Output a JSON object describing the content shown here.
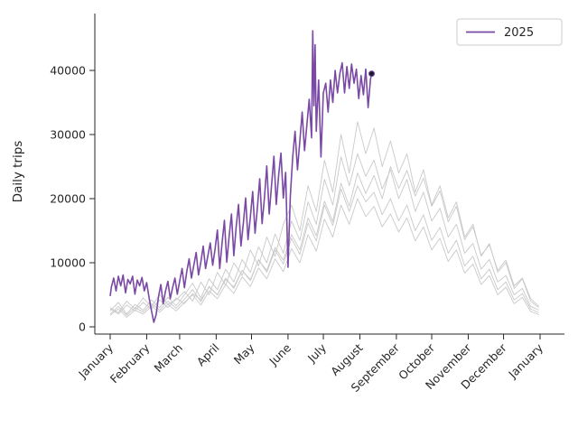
{
  "chart_data": {
    "type": "line",
    "title": "",
    "ylabel": "Daily trips",
    "xlabel": "",
    "grid": false,
    "x_tick_labels": [
      "January",
      "February",
      "March",
      "April",
      "May",
      "June",
      "July",
      "August",
      "September",
      "October",
      "November",
      "December",
      "January"
    ],
    "month_start_days": [
      0,
      31,
      59,
      90,
      120,
      151,
      181,
      212,
      243,
      273,
      304,
      334,
      365
    ],
    "y_ticks": [
      0,
      10000,
      20000,
      30000,
      40000
    ],
    "ylim": [
      0,
      48000
    ],
    "xlim_days": [
      0,
      365
    ],
    "legend": {
      "label": "2025",
      "position": "upper-right"
    },
    "colors": {
      "current_year": "#7a49a5",
      "previous_years": "#c9c9c9",
      "axis": "#262626",
      "end_marker_fill": "#1b1b2f",
      "legend_border": "#cccccc",
      "background": "#ffffff"
    },
    "current_year": {
      "name": "2025",
      "points": [
        [
          0,
          4800
        ],
        [
          1,
          6200
        ],
        [
          3,
          7600
        ],
        [
          5,
          5600
        ],
        [
          7,
          7900
        ],
        [
          9,
          6400
        ],
        [
          11,
          8100
        ],
        [
          13,
          5300
        ],
        [
          15,
          7400
        ],
        [
          17,
          6700
        ],
        [
          19,
          7900
        ],
        [
          21,
          5100
        ],
        [
          23,
          7300
        ],
        [
          25,
          6400
        ],
        [
          27,
          7700
        ],
        [
          29,
          5600
        ],
        [
          31,
          6900
        ],
        [
          33,
          4600
        ],
        [
          35,
          2600
        ],
        [
          37,
          700
        ],
        [
          39,
          1900
        ],
        [
          41,
          4700
        ],
        [
          43,
          6600
        ],
        [
          45,
          3600
        ],
        [
          47,
          5600
        ],
        [
          49,
          7100
        ],
        [
          51,
          4400
        ],
        [
          53,
          6100
        ],
        [
          55,
          7600
        ],
        [
          57,
          5100
        ],
        [
          59,
          7100
        ],
        [
          61,
          9100
        ],
        [
          63,
          6100
        ],
        [
          65,
          8600
        ],
        [
          67,
          10600
        ],
        [
          69,
          7600
        ],
        [
          71,
          9600
        ],
        [
          73,
          11600
        ],
        [
          75,
          8100
        ],
        [
          77,
          10100
        ],
        [
          79,
          12600
        ],
        [
          81,
          9100
        ],
        [
          83,
          11100
        ],
        [
          85,
          13100
        ],
        [
          87,
          9600
        ],
        [
          89,
          12100
        ],
        [
          91,
          15100
        ],
        [
          93,
          9100
        ],
        [
          95,
          13100
        ],
        [
          97,
          16600
        ],
        [
          99,
          10100
        ],
        [
          101,
          14100
        ],
        [
          103,
          17600
        ],
        [
          105,
          11100
        ],
        [
          107,
          15600
        ],
        [
          109,
          19100
        ],
        [
          111,
          12600
        ],
        [
          113,
          16100
        ],
        [
          115,
          20100
        ],
        [
          117,
          13600
        ],
        [
          119,
          17100
        ],
        [
          121,
          21100
        ],
        [
          123,
          14600
        ],
        [
          125,
          18600
        ],
        [
          127,
          23100
        ],
        [
          129,
          16100
        ],
        [
          131,
          20100
        ],
        [
          133,
          25100
        ],
        [
          135,
          17600
        ],
        [
          137,
          22100
        ],
        [
          139,
          26600
        ],
        [
          141,
          19100
        ],
        [
          143,
          23600
        ],
        [
          145,
          27100
        ],
        [
          147,
          20100
        ],
        [
          149,
          24100
        ],
        [
          151,
          9300
        ],
        [
          153,
          20500
        ],
        [
          155,
          26500
        ],
        [
          157,
          30500
        ],
        [
          159,
          24500
        ],
        [
          161,
          29000
        ],
        [
          163,
          33500
        ],
        [
          165,
          27500
        ],
        [
          167,
          31500
        ],
        [
          169,
          35500
        ],
        [
          171,
          29500
        ],
        [
          172,
          46200
        ],
        [
          173,
          34500
        ],
        [
          174,
          44000
        ],
        [
          175,
          30500
        ],
        [
          177,
          38500
        ],
        [
          179,
          26500
        ],
        [
          181,
          36500
        ],
        [
          183,
          38000
        ],
        [
          185,
          33500
        ],
        [
          187,
          38500
        ],
        [
          189,
          35000
        ],
        [
          191,
          40000
        ],
        [
          193,
          36500
        ],
        [
          195,
          39500
        ],
        [
          197,
          41200
        ],
        [
          199,
          36500
        ],
        [
          201,
          40600
        ],
        [
          203,
          37200
        ],
        [
          205,
          41000
        ],
        [
          207,
          38000
        ],
        [
          209,
          40200
        ],
        [
          211,
          35600
        ],
        [
          213,
          39200
        ],
        [
          215,
          36200
        ],
        [
          217,
          40200
        ],
        [
          219,
          34200
        ],
        [
          221,
          38600
        ],
        [
          222,
          39500
        ]
      ],
      "end_marker": [
        222,
        39500
      ]
    },
    "previous_years": [
      {
        "name": "previous-year-1",
        "step_days": 7,
        "values": [
          3000,
          2200,
          4000,
          2800,
          4500,
          3200,
          5000,
          3500,
          4200,
          5500,
          4000,
          7000,
          5000,
          8500,
          6500,
          10000,
          8000,
          12000,
          9500,
          14000,
          11000,
          16000,
          19000,
          15000,
          22000,
          18000,
          26000,
          21000,
          30000,
          24000,
          32000,
          27000,
          31000,
          25000,
          29000,
          24000,
          27000,
          21000,
          24500,
          19000,
          22000,
          17000,
          19500,
          14000,
          16000,
          11000,
          13000,
          8500,
          10000,
          6000,
          7500,
          4000,
          3000
        ]
      },
      {
        "name": "previous-year-2",
        "step_days": 7,
        "values": [
          2500,
          3800,
          2000,
          3500,
          2600,
          4200,
          3000,
          4600,
          3300,
          5000,
          6800,
          4500,
          7500,
          5800,
          9000,
          7000,
          10500,
          8500,
          12500,
          10000,
          14500,
          11500,
          16500,
          13500,
          19500,
          16000,
          23000,
          19000,
          26500,
          22000,
          27000,
          23500,
          26000,
          21500,
          24500,
          20000,
          23000,
          18000,
          21000,
          16500,
          18500,
          14000,
          16000,
          11500,
          13000,
          9000,
          10500,
          7000,
          8000,
          5000,
          6000,
          3200,
          2600
        ]
      },
      {
        "name": "previous-year-3",
        "step_days": 7,
        "values": [
          2000,
          3200,
          1800,
          3000,
          2300,
          3600,
          2600,
          4000,
          2900,
          4300,
          5800,
          3900,
          6300,
          5000,
          7600,
          6000,
          8800,
          7200,
          10500,
          8500,
          12000,
          9800,
          13800,
          11300,
          16200,
          13400,
          19000,
          15800,
          21500,
          18000,
          22000,
          19500,
          21000,
          17500,
          20000,
          16500,
          19000,
          15000,
          17500,
          13500,
          15500,
          11500,
          13500,
          9500,
          11000,
          7500,
          9000,
          5800,
          7000,
          4200,
          5200,
          2800,
          2200
        ]
      },
      {
        "name": "previous-year-4",
        "step_days": 7,
        "values": [
          2800,
          2000,
          3400,
          2500,
          3800,
          2800,
          4200,
          3000,
          4500,
          3600,
          5200,
          4200,
          6200,
          5000,
          7400,
          6200,
          8800,
          7400,
          10400,
          8800,
          12400,
          10400,
          14400,
          12000,
          17000,
          14200,
          19600,
          16400,
          22400,
          18800,
          24000,
          20800,
          23600,
          20000,
          25000,
          21600,
          24400,
          20400,
          23200,
          18800,
          21200,
          16400,
          18800,
          13600,
          15600,
          11200,
          12800,
          8800,
          10400,
          6400,
          7600,
          4400,
          3200
        ]
      },
      {
        "name": "previous-year-5",
        "step_days": 7,
        "values": [
          1800,
          2800,
          1500,
          2600,
          2000,
          3200,
          2300,
          3500,
          2500,
          3800,
          5000,
          3400,
          5600,
          4400,
          6600,
          5200,
          7800,
          6300,
          9200,
          7500,
          10600,
          8600,
          12200,
          10000,
          14400,
          11800,
          16800,
          14000,
          19000,
          16000,
          20000,
          17200,
          18800,
          15600,
          17600,
          14800,
          17000,
          13400,
          15600,
          12000,
          13800,
          10200,
          12000,
          8400,
          9800,
          6600,
          8000,
          5000,
          6200,
          3600,
          4600,
          2400,
          1900
        ]
      }
    ]
  }
}
